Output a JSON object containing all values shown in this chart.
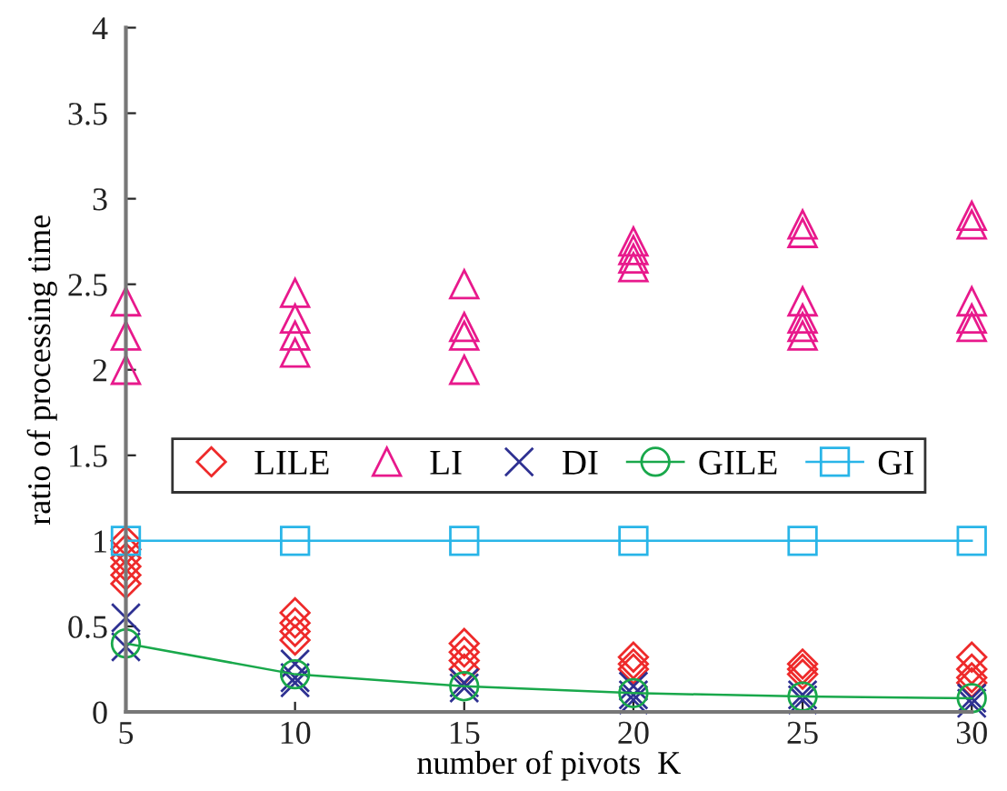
{
  "chart_data": {
    "type": "scatter",
    "xlabel": "number of pivots  K",
    "ylabel": "ratio of processing time",
    "xlim": [
      5,
      30
    ],
    "xticks": [
      5,
      10,
      15,
      20,
      25,
      30
    ],
    "ylim": [
      0,
      4
    ],
    "yticks": [
      0,
      0.5,
      1,
      1.5,
      2,
      2.5,
      3,
      3.5,
      4
    ],
    "grid": false,
    "legend": "center",
    "series": [
      {
        "name": "LILE",
        "marker": "diamond",
        "color": "#ee2a2a",
        "x": [
          5,
          5,
          5,
          5,
          5,
          5,
          10,
          10,
          10,
          10,
          15,
          15,
          15,
          15,
          20,
          20,
          20,
          25,
          25,
          25,
          30,
          30,
          30,
          30
        ],
        "values": [
          1.0,
          0.95,
          0.9,
          0.85,
          0.8,
          0.75,
          0.58,
          0.52,
          0.47,
          0.42,
          0.4,
          0.35,
          0.3,
          0.25,
          0.32,
          0.28,
          0.25,
          0.28,
          0.25,
          0.22,
          0.32,
          0.25,
          0.2,
          0.17
        ]
      },
      {
        "name": "LI",
        "marker": "triangle",
        "color": "#e8198c",
        "x": [
          5,
          5,
          5,
          10,
          10,
          10,
          10,
          15,
          15,
          15,
          15,
          20,
          20,
          20,
          20,
          25,
          25,
          25,
          25,
          25,
          25,
          30,
          30,
          30,
          30,
          30
        ],
        "values": [
          2.4,
          2.2,
          2.0,
          2.45,
          2.3,
          2.2,
          2.1,
          2.5,
          2.25,
          2.2,
          2.0,
          2.75,
          2.7,
          2.65,
          2.6,
          2.85,
          2.8,
          2.4,
          2.3,
          2.25,
          2.2,
          2.9,
          2.85,
          2.4,
          2.3,
          2.25
        ]
      },
      {
        "name": "DI",
        "marker": "cross",
        "color": "#2e3192",
        "x": [
          5,
          5,
          10,
          10,
          10,
          15,
          15,
          20,
          20,
          20,
          25,
          25,
          30,
          30
        ],
        "values": [
          0.55,
          0.38,
          0.28,
          0.2,
          0.17,
          0.17,
          0.14,
          0.15,
          0.1,
          0.07,
          0.1,
          0.07,
          0.08,
          0.05
        ]
      },
      {
        "name": "GILE",
        "type": "line",
        "marker": "circle",
        "line_style": "solid",
        "color": "#19a84b",
        "x": [
          5,
          10,
          15,
          20,
          25,
          30
        ],
        "values": [
          0.4,
          0.22,
          0.15,
          0.11,
          0.09,
          0.08
        ]
      },
      {
        "name": "GI",
        "type": "line",
        "marker": "square",
        "line_style": "solid",
        "color": "#29b5e8",
        "x": [
          5,
          10,
          15,
          20,
          25,
          30
        ],
        "values": [
          1,
          1,
          1,
          1,
          1,
          1
        ]
      }
    ]
  }
}
